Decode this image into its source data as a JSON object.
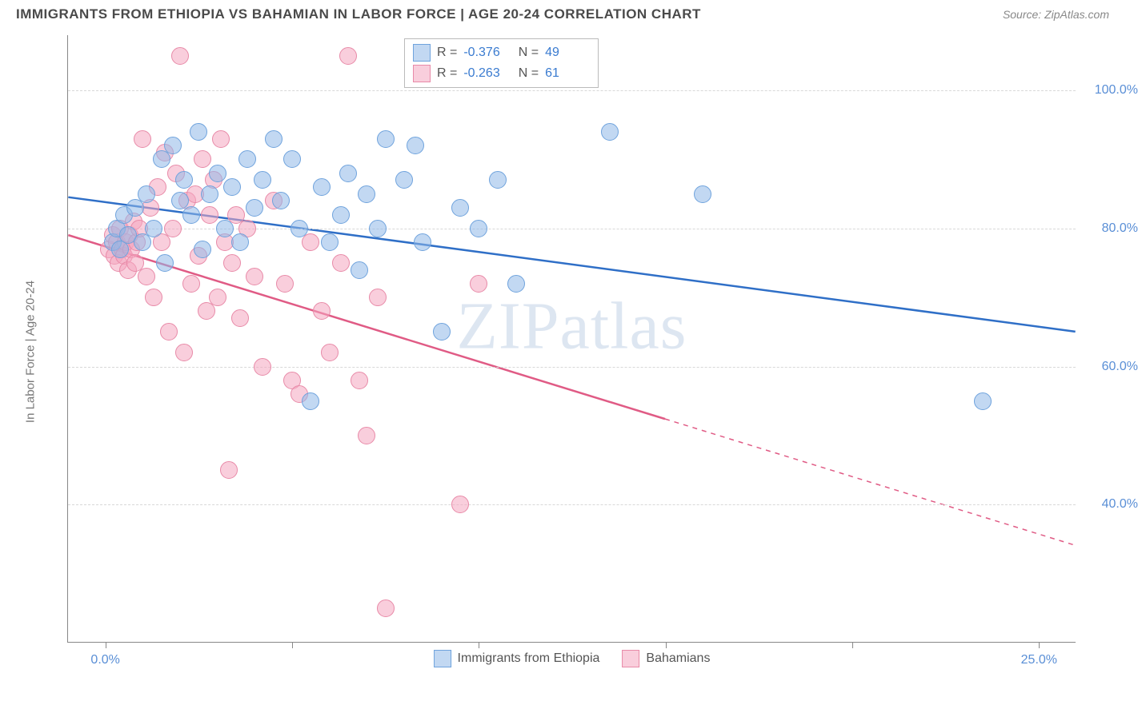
{
  "title": "IMMIGRANTS FROM ETHIOPIA VS BAHAMIAN IN LABOR FORCE | AGE 20-24 CORRELATION CHART",
  "source": "Source: ZipAtlas.com",
  "y_axis_label": "In Labor Force | Age 20-24",
  "watermark": "ZIPatlas",
  "chart": {
    "type": "scatter-with-regression",
    "background_color": "#ffffff",
    "grid_color": "#d8d8d8",
    "axis_color": "#888888",
    "tick_label_color": "#5a8fd6",
    "xlim": [
      -1,
      26
    ],
    "ylim": [
      20,
      108
    ],
    "x_ticks": [
      0,
      5,
      10,
      15,
      20,
      25
    ],
    "x_tick_labels": {
      "0": "0.0%",
      "25": "25.0%"
    },
    "y_ticks": [
      40,
      60,
      80,
      100
    ],
    "y_tick_labels": {
      "40": "40.0%",
      "60": "60.0%",
      "80": "80.0%",
      "100": "100.0%"
    },
    "marker_radius": 11,
    "marker_border_width": 1.5,
    "line_width": 2.5
  },
  "series": [
    {
      "name": "Immigrants from Ethiopia",
      "fill": "rgba(143,184,232,0.55)",
      "stroke": "#6fa3dd",
      "line_color": "#2f6fc7",
      "R": "-0.376",
      "N": "49",
      "regression": {
        "x1": -1,
        "y1": 84.5,
        "x2": 26,
        "y2": 65
      },
      "dash_after_x": null,
      "points": [
        [
          0.2,
          78
        ],
        [
          0.3,
          80
        ],
        [
          0.4,
          77
        ],
        [
          0.5,
          82
        ],
        [
          0.6,
          79
        ],
        [
          0.8,
          83
        ],
        [
          1.0,
          78
        ],
        [
          1.1,
          85
        ],
        [
          1.3,
          80
        ],
        [
          1.5,
          90
        ],
        [
          1.6,
          75
        ],
        [
          1.8,
          92
        ],
        [
          2.0,
          84
        ],
        [
          2.1,
          87
        ],
        [
          2.3,
          82
        ],
        [
          2.5,
          94
        ],
        [
          2.6,
          77
        ],
        [
          2.8,
          85
        ],
        [
          3.0,
          88
        ],
        [
          3.2,
          80
        ],
        [
          3.4,
          86
        ],
        [
          3.6,
          78
        ],
        [
          3.8,
          90
        ],
        [
          4.0,
          83
        ],
        [
          4.2,
          87
        ],
        [
          4.5,
          93
        ],
        [
          4.7,
          84
        ],
        [
          5.0,
          90
        ],
        [
          5.2,
          80
        ],
        [
          5.5,
          55
        ],
        [
          5.8,
          86
        ],
        [
          6.0,
          78
        ],
        [
          6.3,
          82
        ],
        [
          6.5,
          88
        ],
        [
          6.8,
          74
        ],
        [
          7.0,
          85
        ],
        [
          7.3,
          80
        ],
        [
          7.5,
          93
        ],
        [
          8.0,
          87
        ],
        [
          8.3,
          92
        ],
        [
          8.5,
          78
        ],
        [
          9.0,
          65
        ],
        [
          9.5,
          83
        ],
        [
          10.0,
          80
        ],
        [
          10.5,
          87
        ],
        [
          11.0,
          72
        ],
        [
          13.5,
          94
        ],
        [
          16.0,
          85
        ],
        [
          23.5,
          55
        ]
      ]
    },
    {
      "name": "Bahamians",
      "fill": "rgba(244,166,191,0.55)",
      "stroke": "#e88aa8",
      "line_color": "#e05b85",
      "R": "-0.263",
      "N": "61",
      "regression": {
        "x1": -1,
        "y1": 79,
        "x2": 26,
        "y2": 34
      },
      "dash_after_x": 15,
      "points": [
        [
          0.1,
          77
        ],
        [
          0.2,
          79
        ],
        [
          0.25,
          76
        ],
        [
          0.3,
          78
        ],
        [
          0.35,
          75
        ],
        [
          0.4,
          80
        ],
        [
          0.45,
          77
        ],
        [
          0.5,
          76
        ],
        [
          0.55,
          78
        ],
        [
          0.6,
          74
        ],
        [
          0.65,
          79
        ],
        [
          0.7,
          77
        ],
        [
          0.75,
          81
        ],
        [
          0.8,
          75
        ],
        [
          0.85,
          78
        ],
        [
          0.9,
          80
        ],
        [
          1.0,
          93
        ],
        [
          1.1,
          73
        ],
        [
          1.2,
          83
        ],
        [
          1.3,
          70
        ],
        [
          1.4,
          86
        ],
        [
          1.5,
          78
        ],
        [
          1.6,
          91
        ],
        [
          1.7,
          65
        ],
        [
          1.8,
          80
        ],
        [
          1.9,
          88
        ],
        [
          2.0,
          105
        ],
        [
          2.1,
          62
        ],
        [
          2.2,
          84
        ],
        [
          2.3,
          72
        ],
        [
          2.4,
          85
        ],
        [
          2.5,
          76
        ],
        [
          2.6,
          90
        ],
        [
          2.7,
          68
        ],
        [
          2.8,
          82
        ],
        [
          2.9,
          87
        ],
        [
          3.0,
          70
        ],
        [
          3.1,
          93
        ],
        [
          3.2,
          78
        ],
        [
          3.3,
          45
        ],
        [
          3.4,
          75
        ],
        [
          3.5,
          82
        ],
        [
          3.6,
          67
        ],
        [
          3.8,
          80
        ],
        [
          4.0,
          73
        ],
        [
          4.2,
          60
        ],
        [
          4.5,
          84
        ],
        [
          4.8,
          72
        ],
        [
          5.0,
          58
        ],
        [
          5.2,
          56
        ],
        [
          5.5,
          78
        ],
        [
          5.8,
          68
        ],
        [
          6.0,
          62
        ],
        [
          6.3,
          75
        ],
        [
          6.5,
          105
        ],
        [
          6.8,
          58
        ],
        [
          7.0,
          50
        ],
        [
          7.3,
          70
        ],
        [
          7.5,
          25
        ],
        [
          9.5,
          40
        ],
        [
          10.0,
          72
        ]
      ]
    }
  ],
  "legend_bottom": [
    {
      "label": "Immigrants from Ethiopia",
      "series": 0
    },
    {
      "label": "Bahamians",
      "series": 1
    }
  ]
}
